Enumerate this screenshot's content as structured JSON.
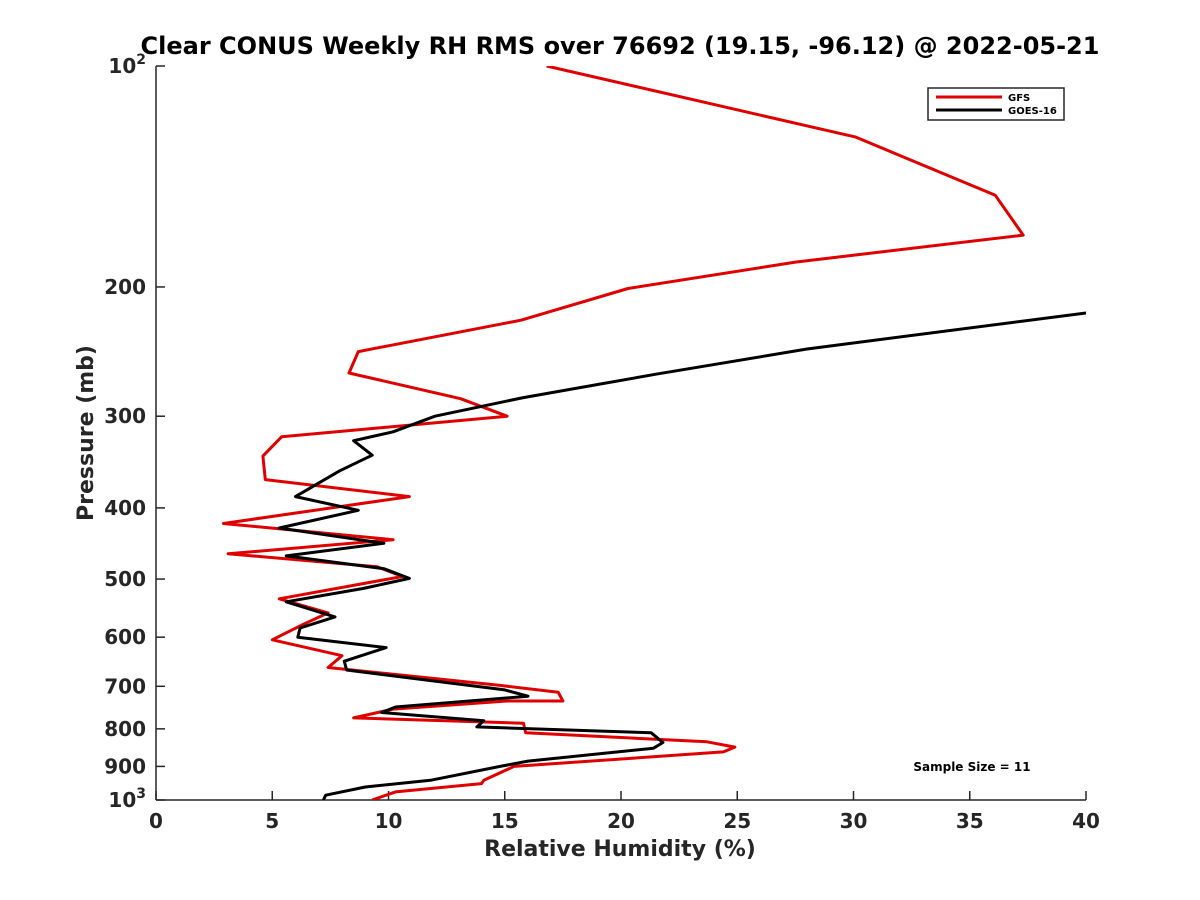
{
  "chart_data": {
    "type": "line",
    "title": "Clear CONUS Weekly RH RMS over 76692 (19.15, -96.12) @ 2022-05-21",
    "xlabel": "Relative Humidity (%)",
    "ylabel": "Pressure (mb)",
    "xlim": [
      0,
      40
    ],
    "ylim": [
      100,
      1000
    ],
    "yscale": "log",
    "y_reversed": true,
    "x_ticks": [
      0,
      5,
      10,
      15,
      20,
      25,
      30,
      35,
      40
    ],
    "x_tick_labels": [
      "0",
      "5",
      "10",
      "15",
      "20",
      "25",
      "30",
      "35",
      "40"
    ],
    "y_ticks": [
      100,
      200,
      300,
      400,
      500,
      600,
      700,
      800,
      900,
      1000
    ],
    "y_tick_labels": [
      {
        "base": "10",
        "exp": "2"
      },
      {
        "base": "200",
        "exp": ""
      },
      {
        "base": "300",
        "exp": ""
      },
      {
        "base": "400",
        "exp": ""
      },
      {
        "base": "500",
        "exp": ""
      },
      {
        "base": "600",
        "exp": ""
      },
      {
        "base": "700",
        "exp": ""
      },
      {
        "base": "800",
        "exp": ""
      },
      {
        "base": "900",
        "exp": ""
      },
      {
        "base": "10",
        "exp": "3"
      }
    ],
    "legend_position": "top-right",
    "annotation": "Sample Size = 11",
    "series": [
      {
        "name": "GFS",
        "color": "#e00000",
        "points": [
          [
            16.8,
            100
          ],
          [
            30.1,
            125
          ],
          [
            36.1,
            150
          ],
          [
            37.3,
            170
          ],
          [
            27.5,
            185
          ],
          [
            20.3,
            201
          ],
          [
            15.7,
            222
          ],
          [
            8.7,
            245
          ],
          [
            8.3,
            262
          ],
          [
            13.1,
            284
          ],
          [
            15.1,
            300
          ],
          [
            5.4,
            320
          ],
          [
            4.6,
            340
          ],
          [
            4.7,
            366
          ],
          [
            10.9,
            386
          ],
          [
            2.9,
            420
          ],
          [
            10.2,
            442
          ],
          [
            3.1,
            462
          ],
          [
            9.5,
            481
          ],
          [
            10.6,
            496
          ],
          [
            5.3,
            532
          ],
          [
            7.4,
            556
          ],
          [
            6.3,
            577
          ],
          [
            5.0,
            605
          ],
          [
            8.0,
            636
          ],
          [
            7.4,
            660
          ],
          [
            10.0,
            673
          ],
          [
            14.8,
            698
          ],
          [
            17.3,
            713
          ],
          [
            17.5,
            733
          ],
          [
            15.1,
            733
          ],
          [
            10.2,
            752
          ],
          [
            8.5,
            773
          ],
          [
            15.8,
            786
          ],
          [
            15.9,
            810
          ],
          [
            23.7,
            833
          ],
          [
            24.9,
            847
          ],
          [
            24.4,
            860
          ],
          [
            15.4,
            900
          ],
          [
            14.1,
            940
          ],
          [
            14.0,
            950
          ],
          [
            10.3,
            975
          ],
          [
            9.3,
            1000
          ]
        ]
      },
      {
        "name": "GOES-16",
        "color": "#000000",
        "points": [
          [
            40.0,
            217
          ],
          [
            28.0,
            243
          ],
          [
            21.5,
            263
          ],
          [
            15.8,
            283
          ],
          [
            12.0,
            300
          ],
          [
            10.2,
            315
          ],
          [
            8.5,
            324
          ],
          [
            9.3,
            339
          ],
          [
            7.9,
            356
          ],
          [
            6.0,
            386
          ],
          [
            8.7,
            403
          ],
          [
            5.3,
            426
          ],
          [
            9.8,
            447
          ],
          [
            5.6,
            465
          ],
          [
            9.8,
            484
          ],
          [
            10.9,
            499
          ],
          [
            8.9,
            515
          ],
          [
            5.6,
            537
          ],
          [
            7.7,
            563
          ],
          [
            6.2,
            583
          ],
          [
            6.1,
            600
          ],
          [
            9.9,
            620
          ],
          [
            8.1,
            647
          ],
          [
            8.2,
            665
          ],
          [
            15.0,
            708
          ],
          [
            16.0,
            722
          ],
          [
            10.3,
            747
          ],
          [
            9.7,
            760
          ],
          [
            14.1,
            780
          ],
          [
            13.8,
            795
          ],
          [
            21.3,
            810
          ],
          [
            21.8,
            835
          ],
          [
            21.4,
            850
          ],
          [
            16.0,
            885
          ],
          [
            14.8,
            900
          ],
          [
            11.8,
            940
          ],
          [
            9.0,
            960
          ],
          [
            7.3,
            985
          ],
          [
            7.2,
            1000
          ]
        ]
      }
    ]
  }
}
